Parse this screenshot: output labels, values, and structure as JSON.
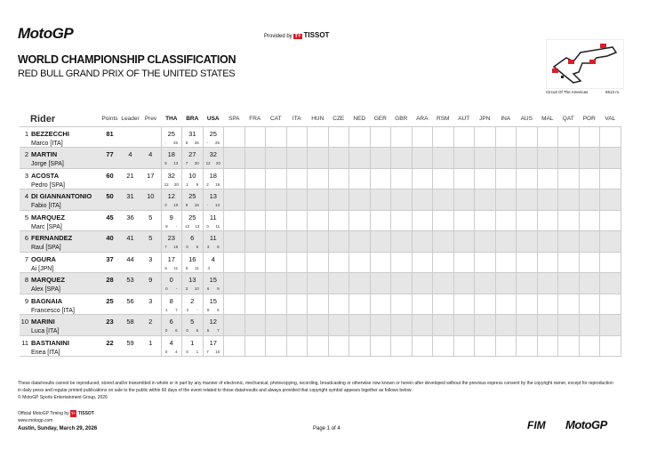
{
  "header": {
    "logo": "MotoGP",
    "provided_by": "Provided by",
    "sponsor": "TISSOT",
    "title": "WORLD CHAMPIONSHIP CLASSIFICATION",
    "subtitle": "RED BULL GRAND PRIX OF THE UNITED STATES",
    "circuit": "Circuit Of The Americas",
    "length": "5513 m."
  },
  "table": {
    "columns": {
      "rider": "Rider",
      "points": "Points",
      "leader": "Leader",
      "prev": "Prev"
    },
    "races": [
      "THA",
      "BRA",
      "USA",
      "SPA",
      "FRA",
      "CAT",
      "ITA",
      "HUN",
      "CZE",
      "NED",
      "GER",
      "GBR",
      "ARA",
      "RSM",
      "AUT",
      "JPN",
      "INA",
      "AUS",
      "MAL",
      "QAT",
      "POR",
      "VAL"
    ],
    "completed_races": 3,
    "rows": [
      {
        "pos": "1",
        "surname": "BEZZECCHI",
        "first": "Marco [ITA]",
        "points": "81",
        "leader": "",
        "prev": "",
        "results": [
          [
            "25",
            "-",
            "25"
          ],
          [
            "31",
            "6",
            "25"
          ],
          [
            "25",
            "-",
            "25"
          ]
        ]
      },
      {
        "pos": "2",
        "surname": "MARTIN",
        "first": "Jorge [SPA]",
        "points": "77",
        "leader": "4",
        "prev": "4",
        "results": [
          [
            "18",
            "5",
            "13"
          ],
          [
            "27",
            "7",
            "20"
          ],
          [
            "32",
            "12",
            "20"
          ]
        ]
      },
      {
        "pos": "3",
        "surname": "ACOSTA",
        "first": "Pedro [SPA]",
        "points": "60",
        "leader": "21",
        "prev": "17",
        "results": [
          [
            "32",
            "12",
            "20"
          ],
          [
            "10",
            "1",
            "9"
          ],
          [
            "18",
            "2",
            "16"
          ]
        ]
      },
      {
        "pos": "4",
        "surname": "DI GIANNANTONIO",
        "first": "Fabio [ITA]",
        "points": "50",
        "leader": "31",
        "prev": "10",
        "results": [
          [
            "12",
            "2",
            "10"
          ],
          [
            "25",
            "9",
            "16"
          ],
          [
            "13",
            "-",
            "13"
          ]
        ]
      },
      {
        "pos": "5",
        "surname": "MARQUEZ",
        "first": "Marc [SPA]",
        "points": "45",
        "leader": "36",
        "prev": "5",
        "results": [
          [
            "9",
            "9",
            "-"
          ],
          [
            "25",
            "12",
            "13"
          ],
          [
            "11",
            "0",
            "11"
          ]
        ]
      },
      {
        "pos": "6",
        "surname": "FERNANDEZ",
        "first": "Raul [SPA]",
        "points": "40",
        "leader": "41",
        "prev": "5",
        "results": [
          [
            "23",
            "7",
            "16"
          ],
          [
            "6",
            "0",
            "6"
          ],
          [
            "11",
            "3",
            "8"
          ]
        ]
      },
      {
        "pos": "7",
        "surname": "OGURA",
        "first": "Ai [JPN]",
        "points": "37",
        "leader": "44",
        "prev": "3",
        "results": [
          [
            "17",
            "6",
            "11"
          ],
          [
            "16",
            "5",
            "11"
          ],
          [
            "4",
            "4",
            ""
          ]
        ]
      },
      {
        "pos": "8",
        "surname": "MARQUEZ",
        "first": "Alex [SPA]",
        "points": "28",
        "leader": "53",
        "prev": "9",
        "results": [
          [
            "0",
            "0",
            "-"
          ],
          [
            "13",
            "3",
            "10"
          ],
          [
            "15",
            "6",
            "9"
          ]
        ]
      },
      {
        "pos": "9",
        "surname": "BAGNAIA",
        "first": "Francesco [ITA]",
        "points": "25",
        "leader": "56",
        "prev": "3",
        "results": [
          [
            "8",
            "1",
            "7"
          ],
          [
            "2",
            "2",
            "-"
          ],
          [
            "15",
            "9",
            "6"
          ]
        ]
      },
      {
        "pos": "10",
        "surname": "MARINI",
        "first": "Luca [ITA]",
        "points": "23",
        "leader": "58",
        "prev": "2",
        "results": [
          [
            "6",
            "0",
            "6"
          ],
          [
            "5",
            "0",
            "5"
          ],
          [
            "12",
            "5",
            "7"
          ]
        ]
      },
      {
        "pos": "11",
        "surname": "BASTIANINI",
        "first": "Enea [ITA]",
        "points": "22",
        "leader": "59",
        "prev": "1",
        "results": [
          [
            "4",
            "0",
            "4"
          ],
          [
            "1",
            "0",
            "1"
          ],
          [
            "17",
            "7",
            "10"
          ]
        ]
      }
    ]
  },
  "footer": {
    "disclaimer": "These data/results cannot be reproduced, stored and/or transmitted in whole or in part by any manner of electronic, mechanical, photocopying, recording, broadcasting or otherwise now known or herein after developed without the previous express consent by the copyright owner, except for reproduction in daily press and regular printed publications on sale to the public within 60 days of the event related to those data/results and always provided that copyright symbol appears together as follows below.",
    "copyright": "© MotoGP Sports Entertainment Group, 2026",
    "timing": "Official MotoGP Timing by",
    "sponsor": "TISSOT",
    "website": "www.motogp.com",
    "location_date": "Austin, Sunday, March 29, 2026",
    "page": "Page 1 of 4",
    "fim": "FIM",
    "logo": "MotoGP"
  }
}
